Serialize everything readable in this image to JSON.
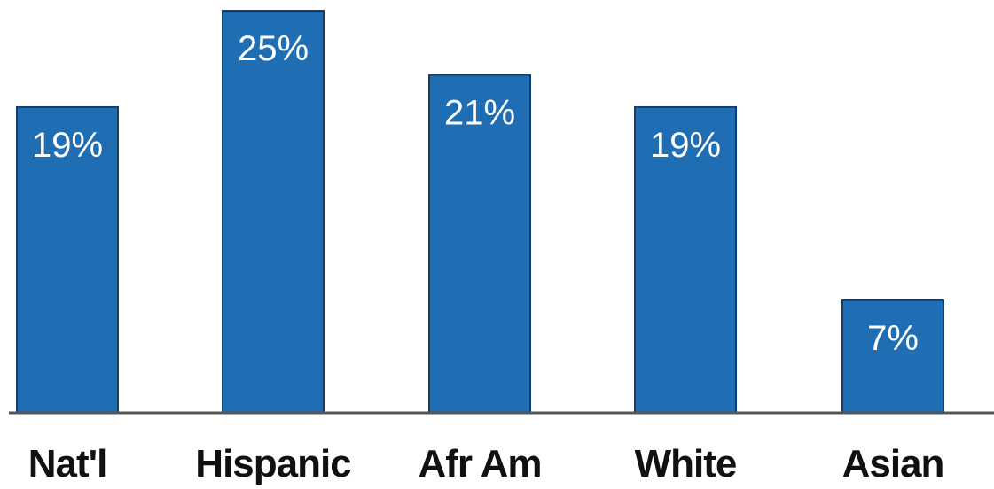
{
  "chart_data": {
    "type": "bar",
    "title": "",
    "xlabel": "",
    "ylabel": "",
    "categories": [
      "Nat'l",
      "Hispanic",
      "Afr Am",
      "White",
      "Asian"
    ],
    "values": [
      19,
      25,
      21,
      19,
      7
    ],
    "data_labels": [
      "19%",
      "25%",
      "21%",
      "19%",
      "7%"
    ],
    "ylim": [
      0,
      25
    ],
    "grid": false,
    "legend": "none",
    "bar_color": "#1f6db3",
    "axis_color": "#555555"
  }
}
